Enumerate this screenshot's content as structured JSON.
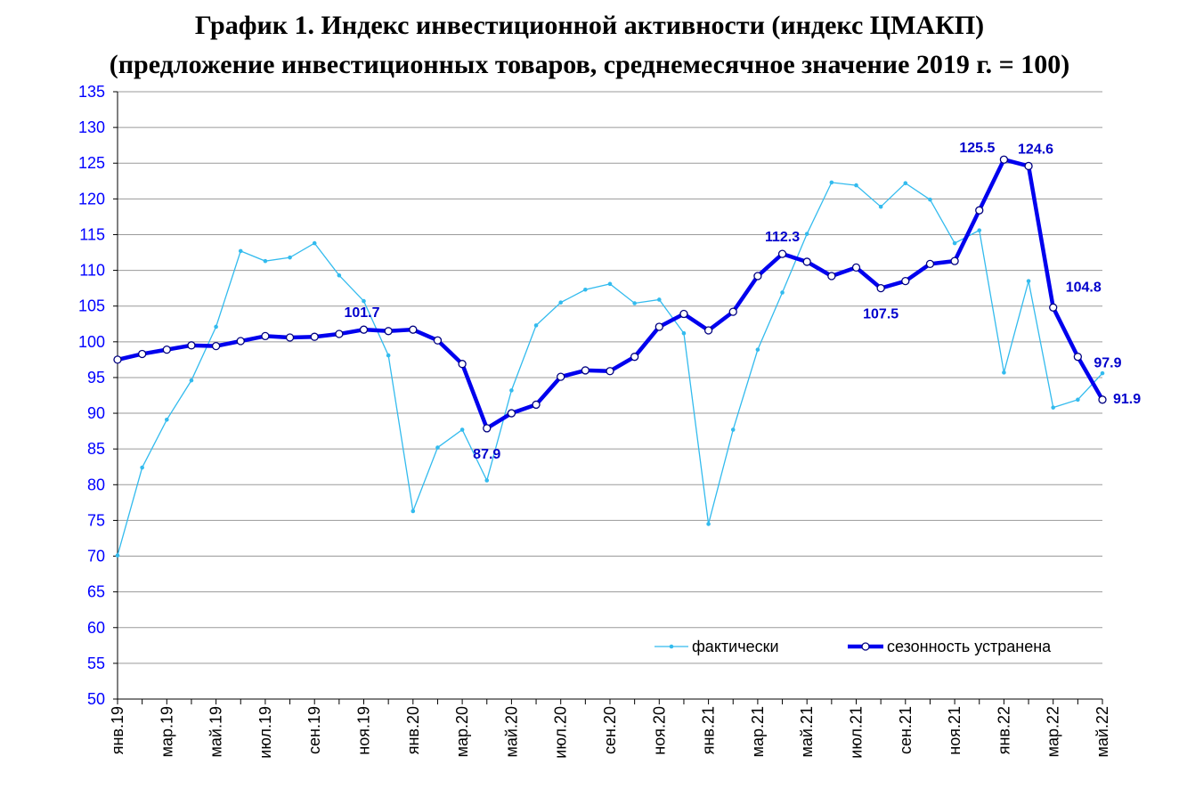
{
  "title_line1": "График 1. Индекс инвестиционной активности (индекс ЦМАКП)",
  "title_line2": "(предложение инвестиционных товаров, среднемесячное значение 2019 г. = 100)",
  "colors": {
    "actual": "#33bbee",
    "adjusted": "#0000ee",
    "axis_text": "#0000ff",
    "grid": "#9a9a9a"
  },
  "chart_data": {
    "type": "line",
    "title": "График 1. Индекс инвестиционной активности (индекс ЦМАКП) (предложение инвестиционных товаров, среднемесячное значение 2019 г. = 100)",
    "xlabel": "",
    "ylabel": "",
    "ylim": [
      50,
      135
    ],
    "yticks": [
      50,
      55,
      60,
      65,
      70,
      75,
      80,
      85,
      90,
      95,
      100,
      105,
      110,
      115,
      120,
      125,
      130,
      135
    ],
    "grid": true,
    "legend_position": "bottom-right",
    "x_months": [
      "янв.19",
      "фев.19",
      "мар.19",
      "апр.19",
      "май.19",
      "июн.19",
      "июл.19",
      "авг.19",
      "сен.19",
      "окт.19",
      "ноя.19",
      "дек.19",
      "янв.20",
      "фев.20",
      "мар.20",
      "апр.20",
      "май.20",
      "июн.20",
      "июл.20",
      "авг.20",
      "сен.20",
      "окт.20",
      "ноя.20",
      "дек.20",
      "янв.21",
      "фев.21",
      "мар.21",
      "апр.21",
      "май.21",
      "июн.21",
      "июл.21",
      "авг.21",
      "сен.21",
      "окт.21",
      "ноя.21",
      "дек.21",
      "янв.22",
      "фев.22",
      "мар.22",
      "апр.22",
      "май.22"
    ],
    "tick_labels": [
      "янв.19",
      "мар.19",
      "май.19",
      "июл.19",
      "сен.19",
      "ноя.19",
      "янв.20",
      "мар.20",
      "май.20",
      "июл.20",
      "сен.20",
      "ноя.20",
      "янв.21",
      "мар.21",
      "май.21",
      "июл.21",
      "сен.21",
      "ноя.21",
      "янв.22",
      "мар.22",
      "май.22"
    ],
    "series": [
      {
        "name": "фактически",
        "values": [
          70.1,
          82.4,
          89.1,
          94.6,
          102.1,
          112.7,
          111.3,
          111.8,
          113.8,
          109.3,
          105.7,
          98.1,
          76.3,
          85.2,
          87.7,
          80.6,
          93.2,
          102.3,
          105.5,
          107.3,
          108.1,
          105.4,
          105.9,
          101.2,
          74.5,
          87.7,
          98.9,
          106.9,
          115.1,
          122.3,
          121.9,
          118.9,
          122.2,
          119.9,
          113.8,
          115.6,
          95.7,
          108.5,
          90.8,
          91.9,
          95.6
        ]
      },
      {
        "name": "сезонность устранена",
        "values": [
          97.5,
          98.3,
          98.9,
          99.5,
          99.4,
          100.1,
          100.8,
          100.6,
          100.7,
          101.1,
          101.7,
          101.5,
          101.7,
          100.2,
          96.9,
          87.9,
          90.0,
          91.2,
          95.1,
          96.0,
          95.9,
          97.9,
          102.1,
          103.9,
          101.6,
          104.2,
          109.2,
          112.3,
          111.2,
          109.2,
          110.4,
          107.5,
          108.5,
          110.9,
          111.3,
          118.4,
          125.5,
          124.6,
          104.8,
          97.9,
          91.9
        ]
      }
    ],
    "data_labels": [
      {
        "series": "сезонность устранена",
        "month": "ноя.19",
        "text": "101.7"
      },
      {
        "series": "сезонность устранена",
        "month": "апр.20",
        "text": "87.9"
      },
      {
        "series": "сезонность устранена",
        "month": "апр.21",
        "text": "112.3"
      },
      {
        "series": "сезонность устранена",
        "month": "авг.21",
        "text": "107.5"
      },
      {
        "series": "сезонность устранена",
        "month": "янв.22",
        "text": "125.5"
      },
      {
        "series": "сезонность устранена",
        "month": "фев.22",
        "text": "124.6"
      },
      {
        "series": "сезонность устранена",
        "month": "мар.22",
        "text": "104.8"
      },
      {
        "series": "сезонность устранена",
        "month": "апр.22",
        "text": "97.9"
      },
      {
        "series": "сезонность устранена",
        "month": "май.22",
        "text": "91.9"
      }
    ]
  }
}
